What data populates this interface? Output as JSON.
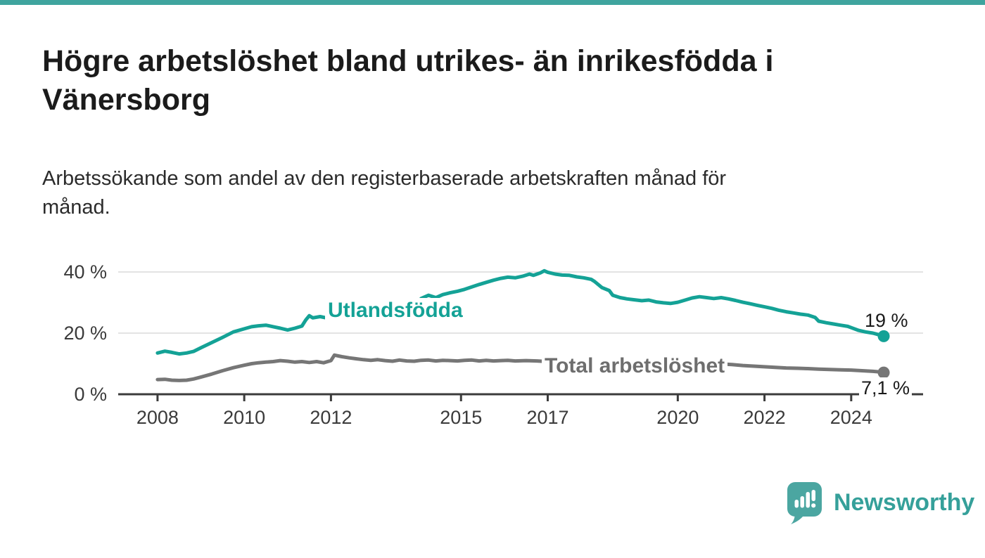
{
  "brand": {
    "logo_text": "Newsworthy",
    "accent_teal": "#14a296",
    "logo_teal": "#4ba6a1",
    "top_bar_color": "#3fa49e"
  },
  "header": {
    "title": "Högre arbetslöshet bland utrikes- än inrikesfödda i Vänersborg",
    "title_lines": [
      "Högre arbetslöshet bland utrikes- än inrikesfödda i",
      "Vänersborg"
    ],
    "subtitle": "Arbetssökande som andel av den registerbaserade arbetskraften månad för månad.",
    "subtitle_lines": [
      "Arbetssökande som andel av den registerbaserade arbetskraften månad för",
      "månad."
    ]
  },
  "chart_data": {
    "type": "line",
    "title": "Högre arbetslöshet bland utrikes- än inrikesfödda i Vänersborg",
    "subtitle": "Arbetssökande som andel av den registerbaserade arbetskraften månad för månad.",
    "xlabel": "",
    "ylabel": "",
    "xlim": [
      2007.1,
      2025.7
    ],
    "ylim": [
      0,
      42
    ],
    "grid": "horizontal",
    "legend": "inline-labels",
    "colors": {
      "gridline": "#dadada",
      "axis": "#3b3b3b",
      "tick_label": "#3a3a3a"
    },
    "yticks": [
      {
        "value": 0,
        "label": "0 %"
      },
      {
        "value": 20,
        "label": "20 %"
      },
      {
        "value": 40,
        "label": "40 %"
      }
    ],
    "xticks": [
      {
        "value": 2008,
        "label": "2008"
      },
      {
        "value": 2010,
        "label": "2010"
      },
      {
        "value": 2012,
        "label": "2012"
      },
      {
        "value": 2015,
        "label": "2015"
      },
      {
        "value": 2017,
        "label": "2017"
      },
      {
        "value": 2020,
        "label": "2020"
      },
      {
        "value": 2022,
        "label": "2022"
      },
      {
        "value": 2024,
        "label": "2024"
      }
    ],
    "series": [
      {
        "name": "Utlandsfödda",
        "color": "#14a296",
        "end_label": "19 %",
        "end_value": 19.0,
        "points": [
          [
            2008.0,
            13.5
          ],
          [
            2008.17,
            14.1
          ],
          [
            2008.33,
            13.7
          ],
          [
            2008.5,
            13.2
          ],
          [
            2008.67,
            13.5
          ],
          [
            2008.83,
            14.0
          ],
          [
            2009.0,
            15.2
          ],
          [
            2009.25,
            16.9
          ],
          [
            2009.5,
            18.6
          ],
          [
            2009.75,
            20.4
          ],
          [
            2010.0,
            21.4
          ],
          [
            2010.17,
            22.1
          ],
          [
            2010.33,
            22.4
          ],
          [
            2010.5,
            22.6
          ],
          [
            2010.67,
            22.1
          ],
          [
            2010.83,
            21.6
          ],
          [
            2011.0,
            21.0
          ],
          [
            2011.17,
            21.6
          ],
          [
            2011.33,
            22.3
          ],
          [
            2011.42,
            24.3
          ],
          [
            2011.5,
            25.7
          ],
          [
            2011.58,
            25.0
          ],
          [
            2011.75,
            25.4
          ],
          [
            2011.92,
            24.9
          ],
          [
            2012.08,
            25.6
          ],
          [
            2012.25,
            26.3
          ],
          [
            2012.42,
            25.9
          ],
          [
            2012.58,
            25.1
          ],
          [
            2012.75,
            25.7
          ],
          [
            2012.92,
            26.2
          ],
          [
            2013.08,
            26.4
          ],
          [
            2013.25,
            25.7
          ],
          [
            2013.42,
            25.1
          ],
          [
            2013.58,
            24.9
          ],
          [
            2013.75,
            25.5
          ],
          [
            2013.92,
            26.4
          ],
          [
            2014.0,
            27.3
          ],
          [
            2014.08,
            31.3
          ],
          [
            2014.25,
            32.4
          ],
          [
            2014.42,
            31.6
          ],
          [
            2014.58,
            32.6
          ],
          [
            2014.75,
            33.2
          ],
          [
            2014.92,
            33.7
          ],
          [
            2015.08,
            34.3
          ],
          [
            2015.25,
            35.1
          ],
          [
            2015.42,
            35.9
          ],
          [
            2015.58,
            36.6
          ],
          [
            2015.75,
            37.3
          ],
          [
            2015.92,
            37.9
          ],
          [
            2016.08,
            38.3
          ],
          [
            2016.25,
            38.1
          ],
          [
            2016.42,
            38.6
          ],
          [
            2016.58,
            39.3
          ],
          [
            2016.67,
            38.9
          ],
          [
            2016.83,
            39.7
          ],
          [
            2016.92,
            40.4
          ],
          [
            2017.0,
            39.9
          ],
          [
            2017.17,
            39.3
          ],
          [
            2017.33,
            39.0
          ],
          [
            2017.5,
            38.9
          ],
          [
            2017.67,
            38.4
          ],
          [
            2017.83,
            38.1
          ],
          [
            2018.0,
            37.6
          ],
          [
            2018.08,
            36.9
          ],
          [
            2018.25,
            34.9
          ],
          [
            2018.42,
            33.9
          ],
          [
            2018.5,
            32.4
          ],
          [
            2018.67,
            31.6
          ],
          [
            2018.83,
            31.2
          ],
          [
            2019.0,
            30.9
          ],
          [
            2019.17,
            30.6
          ],
          [
            2019.33,
            30.8
          ],
          [
            2019.5,
            30.2
          ],
          [
            2019.67,
            29.9
          ],
          [
            2019.83,
            29.7
          ],
          [
            2020.0,
            30.1
          ],
          [
            2020.17,
            30.8
          ],
          [
            2020.33,
            31.5
          ],
          [
            2020.5,
            31.9
          ],
          [
            2020.67,
            31.6
          ],
          [
            2020.83,
            31.3
          ],
          [
            2021.0,
            31.6
          ],
          [
            2021.17,
            31.2
          ],
          [
            2021.33,
            30.7
          ],
          [
            2021.5,
            30.1
          ],
          [
            2021.67,
            29.6
          ],
          [
            2021.83,
            29.1
          ],
          [
            2022.0,
            28.6
          ],
          [
            2022.17,
            28.1
          ],
          [
            2022.33,
            27.5
          ],
          [
            2022.5,
            27.0
          ],
          [
            2022.67,
            26.6
          ],
          [
            2022.83,
            26.2
          ],
          [
            2023.0,
            25.9
          ],
          [
            2023.17,
            25.1
          ],
          [
            2023.25,
            23.9
          ],
          [
            2023.42,
            23.4
          ],
          [
            2023.58,
            23.0
          ],
          [
            2023.75,
            22.6
          ],
          [
            2023.92,
            22.2
          ],
          [
            2024.0,
            21.8
          ],
          [
            2024.17,
            20.9
          ],
          [
            2024.33,
            20.4
          ],
          [
            2024.5,
            20.0
          ],
          [
            2024.58,
            19.7
          ],
          [
            2024.67,
            19.3
          ],
          [
            2024.75,
            19.0
          ]
        ]
      },
      {
        "name": "Total arbetslöshet",
        "color": "#767676",
        "label_color": "#6e6e6e",
        "end_label": "7,1 %",
        "end_value": 7.1,
        "points": [
          [
            2008.0,
            4.8
          ],
          [
            2008.17,
            4.9
          ],
          [
            2008.33,
            4.6
          ],
          [
            2008.5,
            4.5
          ],
          [
            2008.67,
            4.6
          ],
          [
            2008.83,
            5.0
          ],
          [
            2009.0,
            5.6
          ],
          [
            2009.25,
            6.6
          ],
          [
            2009.5,
            7.7
          ],
          [
            2009.75,
            8.7
          ],
          [
            2010.0,
            9.5
          ],
          [
            2010.17,
            10.0
          ],
          [
            2010.33,
            10.3
          ],
          [
            2010.5,
            10.5
          ],
          [
            2010.67,
            10.7
          ],
          [
            2010.83,
            11.0
          ],
          [
            2011.0,
            10.8
          ],
          [
            2011.17,
            10.5
          ],
          [
            2011.33,
            10.7
          ],
          [
            2011.5,
            10.4
          ],
          [
            2011.67,
            10.7
          ],
          [
            2011.83,
            10.3
          ],
          [
            2012.0,
            11.0
          ],
          [
            2012.08,
            12.8
          ],
          [
            2012.25,
            12.3
          ],
          [
            2012.42,
            11.9
          ],
          [
            2012.58,
            11.6
          ],
          [
            2012.75,
            11.3
          ],
          [
            2012.92,
            11.1
          ],
          [
            2013.08,
            11.3
          ],
          [
            2013.25,
            11.0
          ],
          [
            2013.42,
            10.8
          ],
          [
            2013.58,
            11.2
          ],
          [
            2013.75,
            10.9
          ],
          [
            2013.92,
            10.8
          ],
          [
            2014.08,
            11.1
          ],
          [
            2014.25,
            11.2
          ],
          [
            2014.42,
            10.9
          ],
          [
            2014.58,
            11.1
          ],
          [
            2014.75,
            11.0
          ],
          [
            2014.92,
            10.9
          ],
          [
            2015.08,
            11.1
          ],
          [
            2015.25,
            11.2
          ],
          [
            2015.42,
            10.9
          ],
          [
            2015.58,
            11.1
          ],
          [
            2015.75,
            10.9
          ],
          [
            2015.92,
            11.0
          ],
          [
            2016.08,
            11.1
          ],
          [
            2016.25,
            10.9
          ],
          [
            2016.5,
            11.0
          ],
          [
            2016.75,
            10.9
          ],
          [
            2017.0,
            10.7
          ],
          [
            2017.17,
            11.4
          ],
          [
            2017.33,
            11.1
          ],
          [
            2017.5,
            10.8
          ],
          [
            2017.75,
            10.5
          ],
          [
            2018.0,
            10.3
          ],
          [
            2018.25,
            10.0
          ],
          [
            2018.5,
            9.8
          ],
          [
            2018.75,
            9.7
          ],
          [
            2019.0,
            9.6
          ],
          [
            2019.25,
            9.5
          ],
          [
            2019.5,
            9.4
          ],
          [
            2019.75,
            9.3
          ],
          [
            2020.0,
            9.5
          ],
          [
            2020.25,
            10.0
          ],
          [
            2020.5,
            10.3
          ],
          [
            2020.75,
            10.1
          ],
          [
            2021.0,
            9.9
          ],
          [
            2021.25,
            9.7
          ],
          [
            2021.5,
            9.4
          ],
          [
            2021.75,
            9.2
          ],
          [
            2022.0,
            9.0
          ],
          [
            2022.25,
            8.8
          ],
          [
            2022.5,
            8.6
          ],
          [
            2022.75,
            8.5
          ],
          [
            2023.0,
            8.4
          ],
          [
            2023.25,
            8.2
          ],
          [
            2023.5,
            8.1
          ],
          [
            2023.75,
            8.0
          ],
          [
            2024.0,
            7.9
          ],
          [
            2024.25,
            7.7
          ],
          [
            2024.5,
            7.5
          ],
          [
            2024.67,
            7.3
          ],
          [
            2024.75,
            7.1
          ]
        ]
      }
    ]
  }
}
